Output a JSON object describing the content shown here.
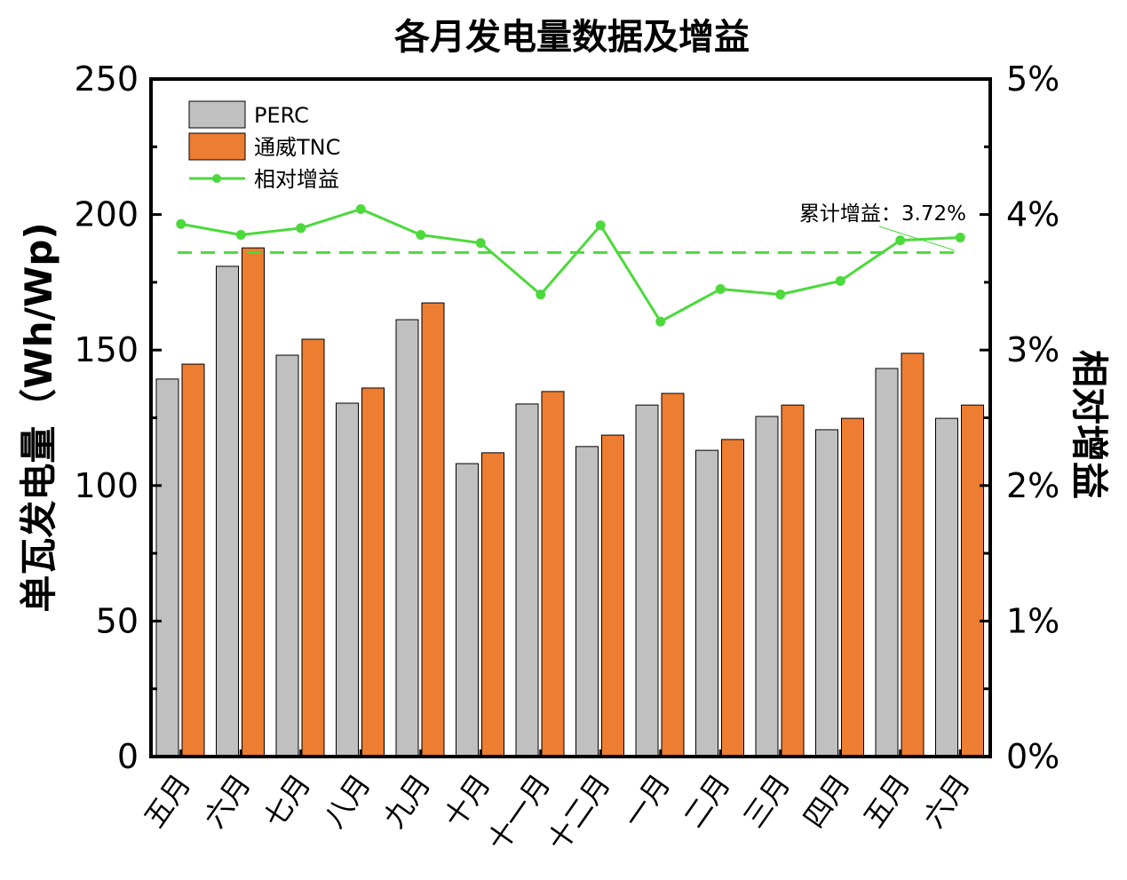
{
  "chart_data": {
    "type": "bar",
    "title": "各月发电量数据及增益",
    "ylabel": "单瓦发电量（Wh/Wp)",
    "y2label": "相对增益",
    "ylim": [
      0,
      250
    ],
    "y2lim": [
      0,
      5
    ],
    "yticks": [
      "0",
      "50",
      "100",
      "150",
      "200",
      "250"
    ],
    "y2ticks": [
      "0%",
      "1%",
      "2%",
      "3%",
      "4%",
      "5%"
    ],
    "categories": [
      "五月",
      "六月",
      "七月",
      "八月",
      "九月",
      "十月",
      "十一月",
      "十二月",
      "一月",
      "二月",
      "三月",
      "四月",
      "五月",
      "六月"
    ],
    "series": [
      {
        "name": "PERC",
        "type": "bar",
        "color": "#c0c0c0",
        "values": [
          139.3,
          180.9,
          148.1,
          130.4,
          161.2,
          108.1,
          130.1,
          114.4,
          129.7,
          113.0,
          125.5,
          120.6,
          143.2,
          124.8
        ]
      },
      {
        "name": "通威TNC",
        "type": "bar",
        "color": "#ed7d31",
        "values": [
          144.8,
          187.7,
          154.0,
          136.0,
          167.4,
          112.1,
          134.7,
          118.6,
          134.0,
          117.0,
          129.7,
          124.8,
          148.8,
          129.7
        ]
      },
      {
        "name": "相对增益",
        "type": "line",
        "axis": "right",
        "color": "#4cd93c",
        "values": [
          3.93,
          3.85,
          3.9,
          4.04,
          3.85,
          3.79,
          3.41,
          3.92,
          3.21,
          3.45,
          3.41,
          3.51,
          3.81,
          3.83
        ]
      }
    ],
    "reference_line": {
      "value": 3.72,
      "axis": "right",
      "style": "dashed",
      "color": "#4cd93c"
    },
    "annotation": "累计增益：3.72%",
    "legend": "top-left",
    "grid": false
  }
}
